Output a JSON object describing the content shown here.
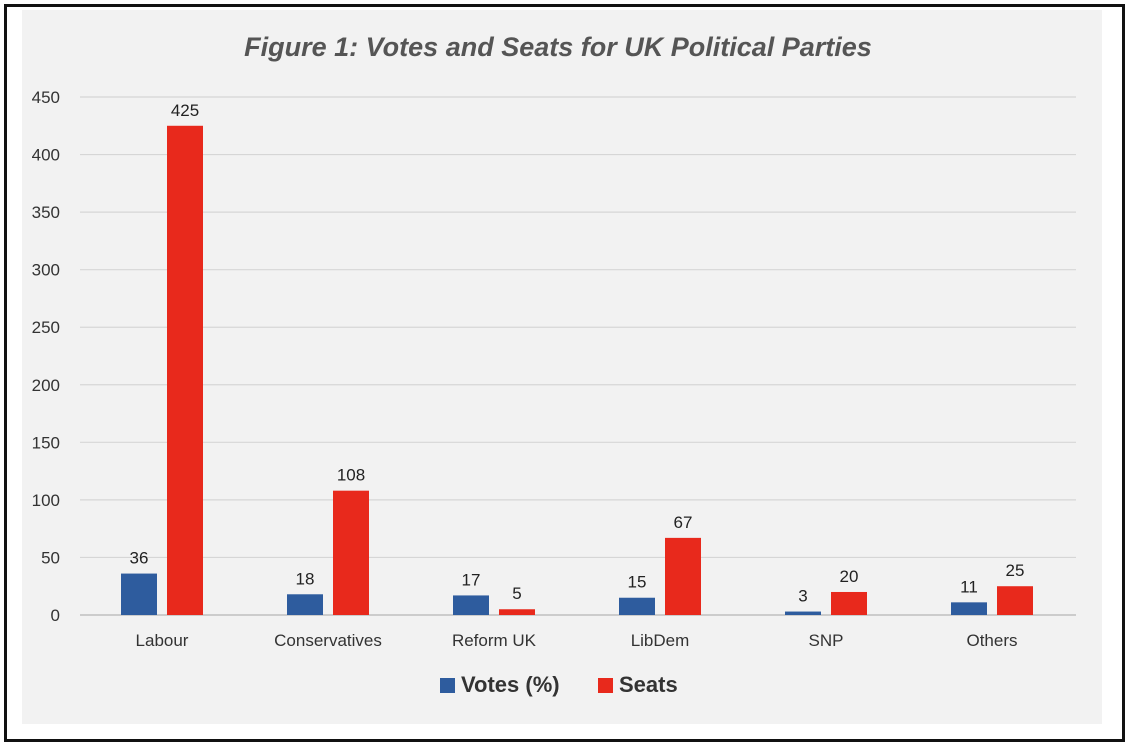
{
  "chart_data": {
    "type": "bar",
    "title": "Figure 1: Votes and Seats for UK Political Parties",
    "categories": [
      "Labour",
      "Conservatives",
      "Reform UK",
      "LibDem",
      "SNP",
      "Others"
    ],
    "series": [
      {
        "name": "Votes (%)",
        "color": "#2e5c9e",
        "values": [
          36,
          18,
          17,
          15,
          3,
          11
        ]
      },
      {
        "name": "Seats",
        "color": "#e8291c",
        "values": [
          425,
          108,
          5,
          67,
          20,
          25
        ]
      }
    ],
    "y_ticks": [
      0,
      50,
      100,
      150,
      200,
      250,
      300,
      350,
      400,
      450
    ],
    "ylim": [
      0,
      450
    ],
    "xlabel": "",
    "ylabel": "",
    "grid": true,
    "legend_position": "bottom",
    "data_labels": true
  }
}
